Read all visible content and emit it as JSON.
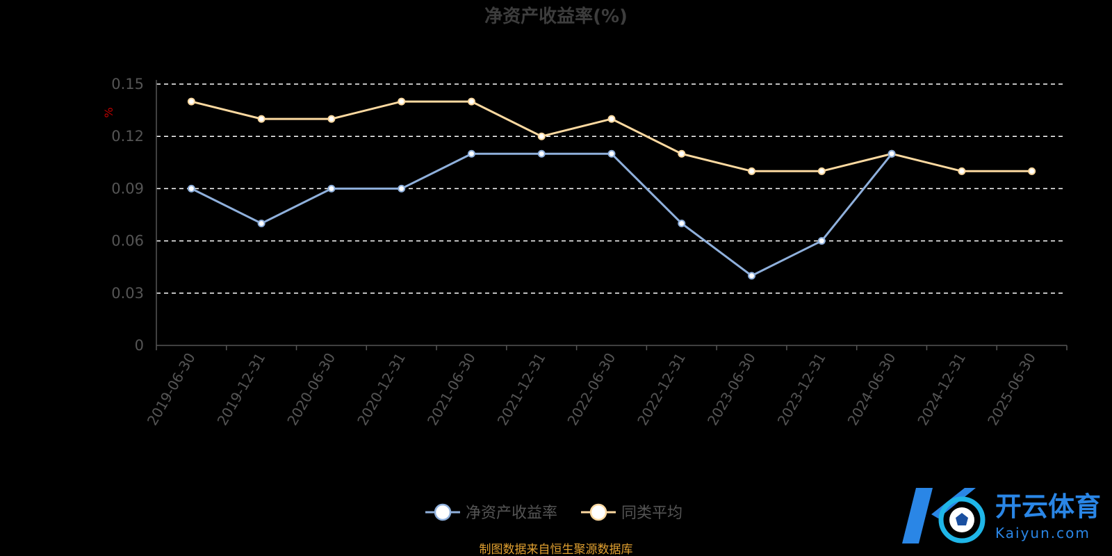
{
  "chart_data": {
    "type": "line",
    "title": "净资产收益率(%)",
    "ylabel": "%",
    "ylim": [
      0,
      0.15
    ],
    "yticks": [
      "0",
      "0.03",
      "0.06",
      "0.09",
      "0.12",
      "0.15"
    ],
    "categories": [
      "2019-06-30",
      "2019-12-31",
      "2020-06-30",
      "2020-12-31",
      "2021-06-30",
      "2021-12-31",
      "2022-06-30",
      "2022-12-31",
      "2023-06-30",
      "2023-12-31",
      "2024-06-30",
      "2024-12-31",
      "2025-06-30"
    ],
    "series": [
      {
        "name": "净资产收益率",
        "color": "#8fb0dc",
        "values": [
          0.09,
          0.07,
          0.09,
          0.09,
          0.11,
          0.11,
          0.11,
          0.07,
          0.04,
          0.06,
          0.11,
          null,
          null
        ]
      },
      {
        "name": "同类平均",
        "color": "#fcd9a0",
        "values": [
          0.14,
          0.13,
          0.13,
          0.14,
          0.14,
          0.12,
          0.13,
          0.11,
          0.1,
          0.1,
          0.11,
          0.1,
          0.1
        ]
      }
    ],
    "grid": true,
    "legend_position": "bottom-center"
  },
  "source_note": "制图数据来自恒生聚源数据库",
  "watermark": {
    "cn": "开云体育",
    "en": "Kaiyun.com"
  }
}
